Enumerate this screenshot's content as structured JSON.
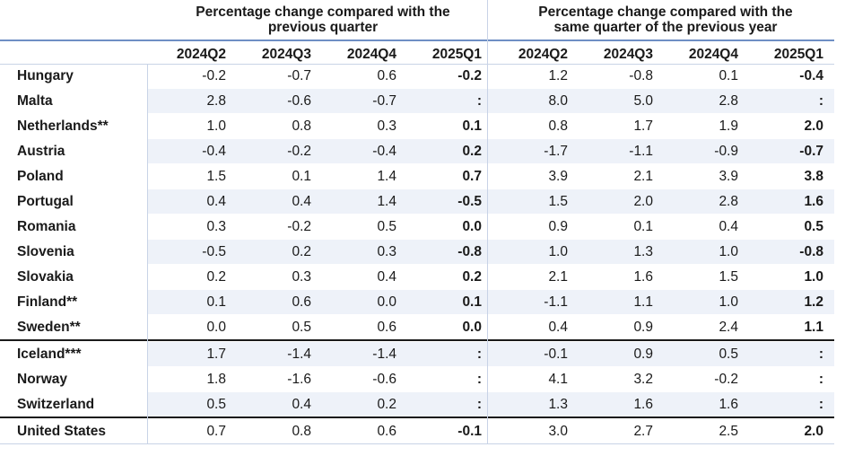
{
  "headers": {
    "group1_line1": "Percentage change compared with the",
    "group1_line2": "previous quarter",
    "group2_line1": "Percentage change compared with the",
    "group2_line2": "same quarter of the previous year"
  },
  "columns": [
    "2024Q2",
    "2024Q3",
    "2024Q4",
    "2025Q1",
    "2024Q2",
    "2024Q3",
    "2024Q4",
    "2025Q1"
  ],
  "rows": [
    {
      "country": "Hungary",
      "values": [
        "-0.2",
        "-0.7",
        "0.6",
        "-0.2",
        "1.2",
        "-0.8",
        "0.1",
        "-0.4"
      ]
    },
    {
      "country": "Malta",
      "values": [
        "2.8",
        "-0.6",
        "-0.7",
        ":",
        "8.0",
        "5.0",
        "2.8",
        ":"
      ]
    },
    {
      "country": "Netherlands**",
      "values": [
        "1.0",
        "0.8",
        "0.3",
        "0.1",
        "0.8",
        "1.7",
        "1.9",
        "2.0"
      ]
    },
    {
      "country": "Austria",
      "values": [
        "-0.4",
        "-0.2",
        "-0.4",
        "0.2",
        "-1.7",
        "-1.1",
        "-0.9",
        "-0.7"
      ]
    },
    {
      "country": "Poland",
      "values": [
        "1.5",
        "0.1",
        "1.4",
        "0.7",
        "3.9",
        "2.1",
        "3.9",
        "3.8"
      ]
    },
    {
      "country": "Portugal",
      "values": [
        "0.4",
        "0.4",
        "1.4",
        "-0.5",
        "1.5",
        "2.0",
        "2.8",
        "1.6"
      ]
    },
    {
      "country": "Romania",
      "values": [
        "0.3",
        "-0.2",
        "0.5",
        "0.0",
        "0.9",
        "0.1",
        "0.4",
        "0.5"
      ]
    },
    {
      "country": "Slovenia",
      "values": [
        "-0.5",
        "0.2",
        "0.3",
        "-0.8",
        "1.0",
        "1.3",
        "1.0",
        "-0.8"
      ]
    },
    {
      "country": "Slovakia",
      "values": [
        "0.2",
        "0.3",
        "0.4",
        "0.2",
        "2.1",
        "1.6",
        "1.5",
        "1.0"
      ]
    },
    {
      "country": "Finland**",
      "values": [
        "0.1",
        "0.6",
        "0.0",
        "0.1",
        "-1.1",
        "1.1",
        "1.0",
        "1.2"
      ]
    },
    {
      "country": "Sweden**",
      "values": [
        "0.0",
        "0.5",
        "0.6",
        "0.0",
        "0.4",
        "0.9",
        "2.4",
        "1.1"
      ]
    },
    {
      "country": "Iceland***",
      "values": [
        "1.7",
        "-1.4",
        "-1.4",
        ":",
        "-0.1",
        "0.9",
        "0.5",
        ":"
      ]
    },
    {
      "country": "Norway",
      "values": [
        "1.8",
        "-1.6",
        "-0.6",
        ":",
        "4.1",
        "3.2",
        "-0.2",
        ":"
      ]
    },
    {
      "country": "Switzerland",
      "values": [
        "0.5",
        "0.4",
        "0.2",
        ":",
        "1.3",
        "1.6",
        "1.6",
        ":"
      ]
    },
    {
      "country": "United States",
      "values": [
        "0.7",
        "0.8",
        "0.6",
        "-0.1",
        "3.0",
        "2.7",
        "2.5",
        "2.0"
      ]
    }
  ],
  "colors": {
    "stripe": "#eef2f9",
    "header_rule": "#6f8fc4",
    "separator": "#1a1a1a",
    "grid": "#c8d3e6"
  }
}
